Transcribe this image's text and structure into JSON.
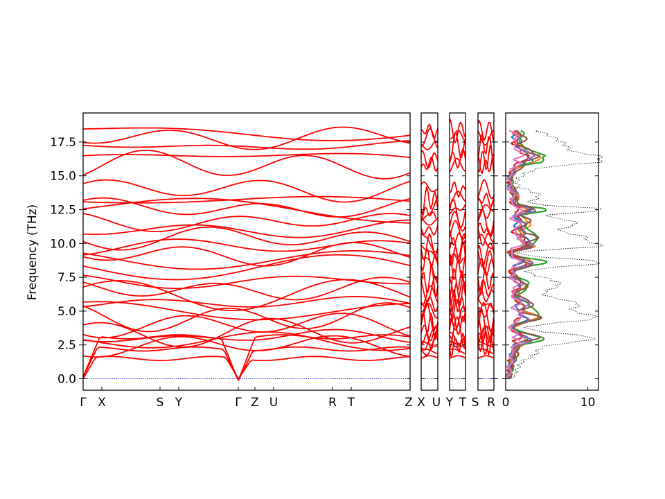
{
  "chart_data": {
    "type": "line",
    "ylabel": "Frequency (THz)",
    "ylim": [
      -0.9,
      19.5
    ],
    "yticks": [
      "0.0",
      "2.5",
      "5.0",
      "7.5",
      "10.0",
      "12.5",
      "15.0",
      "17.5"
    ],
    "band_path": [
      {
        "segment": "main",
        "labels": [
          "Γ",
          "X",
          "S",
          "Y",
          "Γ",
          "Z",
          "U",
          "R",
          "T",
          "Z"
        ]
      },
      {
        "segment": "second",
        "labels": [
          "X",
          "U"
        ]
      },
      {
        "segment": "third",
        "labels": [
          "Y",
          "T"
        ]
      },
      {
        "segment": "fourth",
        "labels": [
          "S",
          "R"
        ]
      }
    ],
    "band_color": "#ff0000",
    "bands_at_gamma_THz": [
      0.0,
      0.0,
      0.0,
      2.5,
      2.8,
      3.1,
      3.4,
      4.0,
      4.5,
      5.0,
      5.6,
      6.2,
      6.6,
      7.2,
      8.2,
      8.8,
      9.2,
      9.8,
      10.4,
      11.0,
      11.6,
      12.2,
      12.6,
      13.2,
      14.0,
      15.8,
      16.2,
      17.2,
      17.8,
      18.3
    ],
    "pdos": {
      "xlim": [
        0,
        11.3
      ],
      "xticks": [
        "0",
        "10"
      ],
      "series": [
        {
          "color": "#000000",
          "style": "dotted"
        },
        {
          "color": "#1f77b4"
        },
        {
          "color": "#ff7f0e"
        },
        {
          "color": "#2ca02c"
        },
        {
          "color": "#d62728"
        },
        {
          "color": "#9467bd"
        },
        {
          "color": "#8c564b"
        },
        {
          "color": "#e377c2"
        }
      ]
    }
  }
}
